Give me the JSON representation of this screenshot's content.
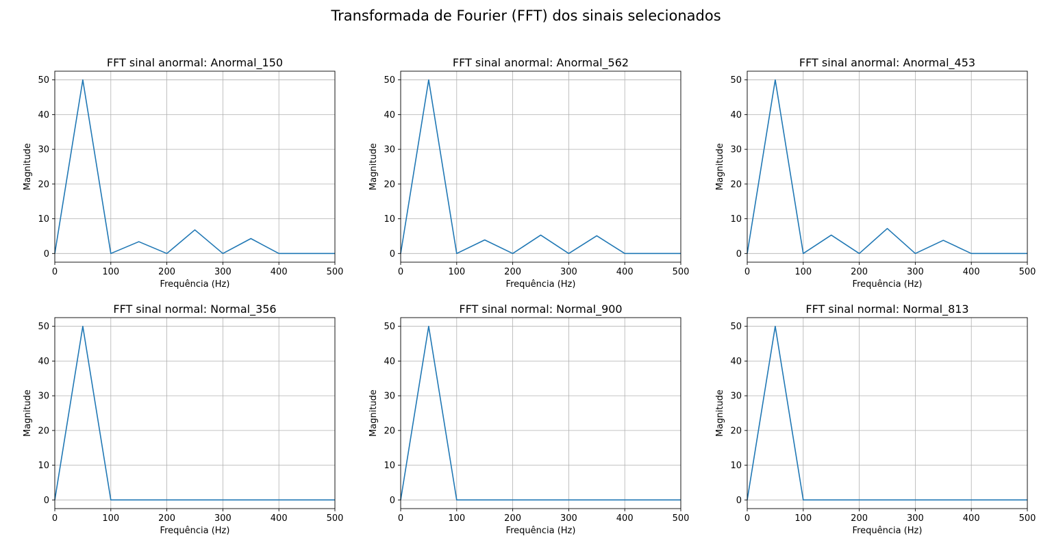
{
  "figure": {
    "title": "Transformada de Fourier (FFT) dos sinais selecionados"
  },
  "colors": {
    "line": "#1f77b4",
    "grid": "#b0b0b0",
    "axis": "#000000"
  },
  "chart_data": [
    {
      "type": "line",
      "title": "FFT sinal anormal: Anormal_150",
      "xlabel": "Frequência (Hz)",
      "ylabel": "Magnitude",
      "xlim": [
        0,
        500
      ],
      "ylim": [
        -2.5,
        52.5
      ],
      "xticks": [
        0,
        100,
        200,
        300,
        400,
        500
      ],
      "yticks": [
        0,
        10,
        20,
        30,
        40,
        50
      ],
      "grid": true,
      "series": [
        {
          "x": [
            0,
            50,
            100,
            150,
            200,
            250,
            300,
            350,
            400,
            450,
            500
          ],
          "y": [
            0,
            50,
            0,
            3.4,
            0,
            6.8,
            0,
            4.3,
            0,
            0,
            0
          ]
        }
      ]
    },
    {
      "type": "line",
      "title": "FFT sinal anormal: Anormal_562",
      "xlabel": "Frequência (Hz)",
      "ylabel": "Magnitude",
      "xlim": [
        0,
        500
      ],
      "ylim": [
        -2.5,
        52.5
      ],
      "xticks": [
        0,
        100,
        200,
        300,
        400,
        500
      ],
      "yticks": [
        0,
        10,
        20,
        30,
        40,
        50
      ],
      "grid": true,
      "series": [
        {
          "x": [
            0,
            50,
            100,
            150,
            200,
            250,
            300,
            350,
            400,
            450,
            500
          ],
          "y": [
            0,
            50,
            0,
            3.9,
            0,
            5.3,
            0,
            5.1,
            0,
            0,
            0
          ]
        }
      ]
    },
    {
      "type": "line",
      "title": "FFT sinal anormal: Anormal_453",
      "xlabel": "Frequência (Hz)",
      "ylabel": "Magnitude",
      "xlim": [
        0,
        500
      ],
      "ylim": [
        -2.5,
        52.5
      ],
      "xticks": [
        0,
        100,
        200,
        300,
        400,
        500
      ],
      "yticks": [
        0,
        10,
        20,
        30,
        40,
        50
      ],
      "grid": true,
      "series": [
        {
          "x": [
            0,
            50,
            100,
            150,
            200,
            250,
            300,
            350,
            400,
            450,
            500
          ],
          "y": [
            0,
            50,
            0,
            5.3,
            0,
            7.2,
            0,
            3.8,
            0,
            0,
            0
          ]
        }
      ]
    },
    {
      "type": "line",
      "title": "FFT sinal normal: Normal_356",
      "xlabel": "Frequência (Hz)",
      "ylabel": "Magnitude",
      "xlim": [
        0,
        500
      ],
      "ylim": [
        -2.5,
        52.5
      ],
      "xticks": [
        0,
        100,
        200,
        300,
        400,
        500
      ],
      "yticks": [
        0,
        10,
        20,
        30,
        40,
        50
      ],
      "grid": true,
      "series": [
        {
          "x": [
            0,
            50,
            100,
            150,
            200,
            250,
            300,
            350,
            400,
            450,
            500
          ],
          "y": [
            0,
            50,
            0,
            0,
            0,
            0,
            0,
            0,
            0,
            0,
            0
          ]
        }
      ]
    },
    {
      "type": "line",
      "title": "FFT sinal normal: Normal_900",
      "xlabel": "Frequência (Hz)",
      "ylabel": "Magnitude",
      "xlim": [
        0,
        500
      ],
      "ylim": [
        -2.5,
        52.5
      ],
      "xticks": [
        0,
        100,
        200,
        300,
        400,
        500
      ],
      "yticks": [
        0,
        10,
        20,
        30,
        40,
        50
      ],
      "grid": true,
      "series": [
        {
          "x": [
            0,
            50,
            100,
            150,
            200,
            250,
            300,
            350,
            400,
            450,
            500
          ],
          "y": [
            0,
            50,
            0,
            0,
            0,
            0,
            0,
            0,
            0,
            0,
            0
          ]
        }
      ]
    },
    {
      "type": "line",
      "title": "FFT sinal normal: Normal_813",
      "xlabel": "Frequência (Hz)",
      "ylabel": "Magnitude",
      "xlim": [
        0,
        500
      ],
      "ylim": [
        -2.5,
        52.5
      ],
      "xticks": [
        0,
        100,
        200,
        300,
        400,
        500
      ],
      "yticks": [
        0,
        10,
        20,
        30,
        40,
        50
      ],
      "grid": true,
      "series": [
        {
          "x": [
            0,
            50,
            100,
            150,
            200,
            250,
            300,
            350,
            400,
            450,
            500
          ],
          "y": [
            0,
            50,
            0,
            0,
            0,
            0,
            0,
            0,
            0,
            0,
            0
          ]
        }
      ]
    }
  ]
}
